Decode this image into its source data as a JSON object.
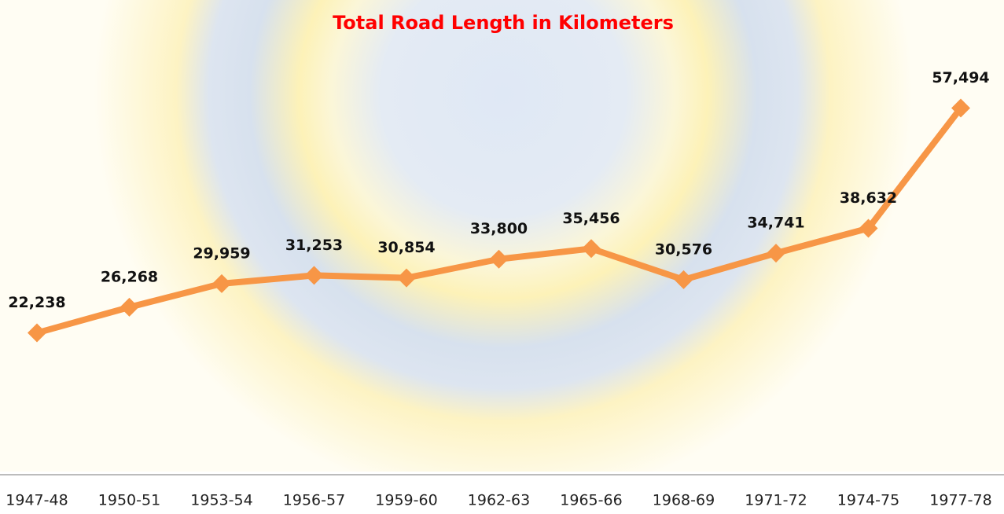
{
  "chart_data": {
    "type": "line",
    "title": "Total Road Length in Kilometers",
    "categories": [
      "1947-48",
      "1950-51",
      "1953-54",
      "1956-57",
      "1959-60",
      "1962-63",
      "1965-66",
      "1968-69",
      "1971-72",
      "1974-75",
      "1977-78"
    ],
    "series": [
      {
        "name": "Total Road Length",
        "color": "#f79646",
        "values": [
          22238,
          26268,
          29959,
          31253,
          30854,
          33800,
          35456,
          30576,
          34741,
          38632,
          57494
        ],
        "value_labels": [
          "22,238",
          "26,268",
          "29,959",
          "31,253",
          "30,854",
          "33,800",
          "35,456",
          "30,576",
          "34,741",
          "38,632",
          "57,494"
        ]
      }
    ],
    "ylim": [
      0,
      70000
    ]
  }
}
